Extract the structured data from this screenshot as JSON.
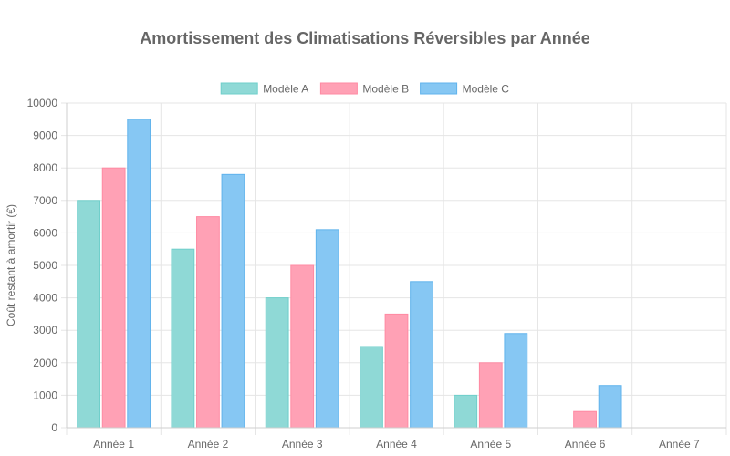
{
  "chart_data": {
    "type": "bar",
    "title": "Amortissement des Climatisations Réversibles par Année",
    "xlabel": "",
    "ylabel": "Coût restant à amortir (€)",
    "categories": [
      "Année 1",
      "Année 2",
      "Année 3",
      "Année 4",
      "Année 5",
      "Année 6",
      "Année 7"
    ],
    "ylim": [
      0,
      10000
    ],
    "yticks": [
      0,
      1000,
      2000,
      3000,
      4000,
      5000,
      6000,
      7000,
      8000,
      9000,
      10000
    ],
    "grid": true,
    "legend_position": "top",
    "series": [
      {
        "name": "Modèle A",
        "values": [
          7000,
          5500,
          4000,
          2500,
          1000,
          0,
          0
        ],
        "color": "#8fd9d6",
        "border": "#6fcfcb"
      },
      {
        "name": "Modèle B",
        "values": [
          8000,
          6500,
          5000,
          3500,
          2000,
          500,
          0
        ],
        "color": "#ffa1b5",
        "border": "#ff8aa3"
      },
      {
        "name": "Modèle C",
        "values": [
          9500,
          7800,
          6100,
          4500,
          2900,
          1300,
          0
        ],
        "color": "#86c7f3",
        "border": "#60b3ec"
      }
    ]
  }
}
